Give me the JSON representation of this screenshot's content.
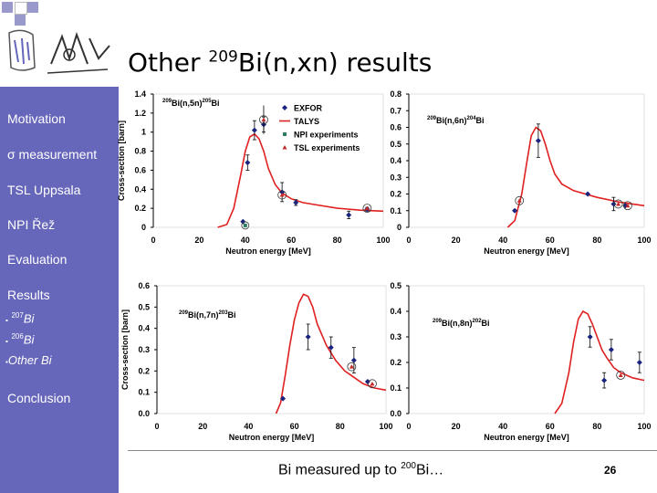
{
  "slide": {
    "title_pre": "Other ",
    "title_sup": "209",
    "title_post": "Bi(n,xn) results",
    "caption_pre": "Bi measured up to ",
    "caption_sup": "200",
    "caption_post": "Bi…",
    "page_number": "26"
  },
  "sidebar": {
    "items": [
      {
        "label": "Motivation"
      },
      {
        "label": "σ measurement"
      },
      {
        "label": "TSL Uppsala"
      },
      {
        "label": "NPI Řež"
      },
      {
        "label": "Evaluation"
      },
      {
        "label": "Results"
      }
    ],
    "subitems": [
      {
        "bullet": "▪",
        "sup": "207",
        "label": "Bi"
      },
      {
        "bullet": "▪",
        "sup": "206",
        "label": "Bi"
      },
      {
        "bullet": "▪",
        "sup": "",
        "label": "Other Bi"
      }
    ],
    "last_item": "Conclusion",
    "colors": {
      "background": "#6666bb",
      "text": "#ffffff"
    }
  },
  "legend": [
    "EXFOR",
    "TALYS",
    "NPI experiments",
    "TSL experiments"
  ],
  "colors": {
    "exfor": "#1a237e",
    "talys": "#e02020",
    "npi": "#2e7d60",
    "tsl": "#c62828",
    "data": "#1a237e"
  },
  "chart_data": [
    {
      "type": "line",
      "reaction": {
        "pre": "209",
        "mid": "Bi(n,5n)",
        "sup": "205",
        "post": "Bi"
      },
      "xlabel": "Neutron energy [MeV]",
      "ylabel": "Cross-section [barn]",
      "xlim": [
        0,
        100
      ],
      "ylim": [
        0,
        1.4
      ],
      "xticks": [
        0,
        20,
        40,
        60,
        80,
        100
      ],
      "yticks": [
        0,
        0.2,
        0.4,
        0.6,
        0.8,
        1,
        1.2,
        1.4
      ],
      "ytick_labels": [
        "0",
        "0.2",
        "0.4",
        "0.6",
        "0.8",
        "1",
        "1.2",
        "1.4"
      ],
      "legend": true,
      "talys": {
        "x": [
          28,
          32,
          35,
          38,
          40,
          42,
          44,
          46,
          48,
          50,
          53,
          56,
          60,
          65,
          70,
          80,
          90,
          100
        ],
        "y": [
          0,
          0.03,
          0.2,
          0.55,
          0.8,
          0.95,
          0.98,
          0.93,
          0.8,
          0.62,
          0.45,
          0.36,
          0.3,
          0.26,
          0.24,
          0.2,
          0.18,
          0.17
        ]
      },
      "exfor": [
        {
          "x": 39,
          "y": 0.06
        },
        {
          "x": 41,
          "y": 0.68,
          "err": 0.08
        },
        {
          "x": 44,
          "y": 1.02,
          "err": 0.1
        },
        {
          "x": 48,
          "y": 1.08,
          "err": 0.08
        },
        {
          "x": 56,
          "y": 0.37,
          "err": 0.1
        },
        {
          "x": 62,
          "y": 0.26,
          "err": 0.03
        },
        {
          "x": 85,
          "y": 0.13,
          "err": 0.04
        },
        {
          "x": 93,
          "y": 0.19,
          "err": 0.02
        }
      ],
      "npi": [
        {
          "x": 40,
          "y": 0.02
        }
      ],
      "tsl": [
        {
          "x": 48,
          "y": 1.13,
          "err": 0.15
        },
        {
          "x": 56,
          "y": 0.34
        },
        {
          "x": 93,
          "y": 0.2
        }
      ]
    },
    {
      "type": "line",
      "reaction": {
        "pre": "209",
        "mid": "Bi(n,6n)",
        "sup": "204",
        "post": "Bi"
      },
      "xlabel": "Neutron energy [MeV]",
      "ylabel": "",
      "xlim": [
        0,
        100
      ],
      "ylim": [
        0,
        0.8
      ],
      "xticks": [
        0,
        20,
        40,
        60,
        80,
        100
      ],
      "yticks": [
        0,
        0.1,
        0.2,
        0.3,
        0.4,
        0.5,
        0.6,
        0.7,
        0.8
      ],
      "ytick_labels": [
        "0",
        "0.1",
        "0.2",
        "0.3",
        "0.4",
        "0.5",
        "0.6",
        "0.7",
        "0.8"
      ],
      "legend": false,
      "talys": {
        "x": [
          42,
          45,
          48,
          50,
          52,
          54,
          56,
          58,
          60,
          62,
          65,
          70,
          75,
          80,
          90,
          100
        ],
        "y": [
          0,
          0.04,
          0.2,
          0.38,
          0.55,
          0.6,
          0.58,
          0.5,
          0.4,
          0.32,
          0.26,
          0.22,
          0.2,
          0.18,
          0.15,
          0.13
        ]
      },
      "exfor": [
        {
          "x": 45,
          "y": 0.1
        },
        {
          "x": 55,
          "y": 0.52,
          "err": 0.1
        },
        {
          "x": 76,
          "y": 0.2
        },
        {
          "x": 87,
          "y": 0.14,
          "err": 0.04
        },
        {
          "x": 92,
          "y": 0.13
        }
      ],
      "npi": [],
      "tsl": [
        {
          "x": 47,
          "y": 0.16
        },
        {
          "x": 89,
          "y": 0.14
        },
        {
          "x": 93,
          "y": 0.13
        }
      ]
    },
    {
      "type": "line",
      "reaction": {
        "pre": "209",
        "mid": "Bi(n,7n)",
        "sup": "203",
        "post": "Bi"
      },
      "xlabel": "Neutron energy [MeV]",
      "ylabel": "Cross-section [barn]",
      "xlim": [
        0,
        100
      ],
      "ylim": [
        0,
        0.6
      ],
      "xticks": [
        0,
        20,
        40,
        60,
        80,
        100
      ],
      "yticks": [
        0,
        0.1,
        0.2,
        0.3,
        0.4,
        0.5,
        0.6
      ],
      "ytick_labels": [
        "0.0",
        "0.1",
        "0.2",
        "0.3",
        "0.4",
        "0.5",
        "0.6"
      ],
      "legend": false,
      "talys": {
        "x": [
          52,
          54,
          56,
          58,
          60,
          62,
          64,
          66,
          68,
          70,
          74,
          78,
          82,
          86,
          90,
          95,
          100
        ],
        "y": [
          0,
          0.05,
          0.18,
          0.32,
          0.44,
          0.52,
          0.56,
          0.55,
          0.5,
          0.42,
          0.32,
          0.25,
          0.2,
          0.17,
          0.14,
          0.12,
          0.11
        ]
      },
      "exfor": [
        {
          "x": 55,
          "y": 0.07
        },
        {
          "x": 66,
          "y": 0.36,
          "err": 0.06
        },
        {
          "x": 76,
          "y": 0.31,
          "err": 0.05
        },
        {
          "x": 86,
          "y": 0.25,
          "err": 0.06
        },
        {
          "x": 92,
          "y": 0.15
        }
      ],
      "npi": [],
      "tsl": [
        {
          "x": 85,
          "y": 0.22
        },
        {
          "x": 94,
          "y": 0.14
        }
      ]
    },
    {
      "type": "line",
      "reaction": {
        "pre": "209",
        "mid": "Bi(n,8n)",
        "sup": "202",
        "post": "Bi"
      },
      "xlabel": "Neutron energy [MeV]",
      "ylabel": "",
      "xlim": [
        0,
        100
      ],
      "ylim": [
        0,
        0.5
      ],
      "xticks": [
        0,
        20,
        40,
        60,
        80,
        100
      ],
      "yticks": [
        0,
        0.1,
        0.2,
        0.3,
        0.4,
        0.5
      ],
      "ytick_labels": [
        "0.0",
        "0.1",
        "0.2",
        "0.3",
        "0.4",
        "0.5"
      ],
      "legend": false,
      "talys": {
        "x": [
          62,
          65,
          68,
          70,
          72,
          74,
          76,
          78,
          80,
          82,
          84,
          87,
          90,
          95,
          100
        ],
        "y": [
          0,
          0.04,
          0.16,
          0.28,
          0.37,
          0.4,
          0.39,
          0.35,
          0.3,
          0.25,
          0.22,
          0.18,
          0.16,
          0.14,
          0.13
        ]
      },
      "exfor": [
        {
          "x": 77,
          "y": 0.3,
          "err": 0.04
        },
        {
          "x": 83,
          "y": 0.13,
          "err": 0.03
        },
        {
          "x": 86,
          "y": 0.25,
          "err": 0.04
        },
        {
          "x": 98,
          "y": 0.2,
          "err": 0.04
        }
      ],
      "npi": [],
      "tsl": [
        {
          "x": 90,
          "y": 0.15
        }
      ]
    }
  ]
}
